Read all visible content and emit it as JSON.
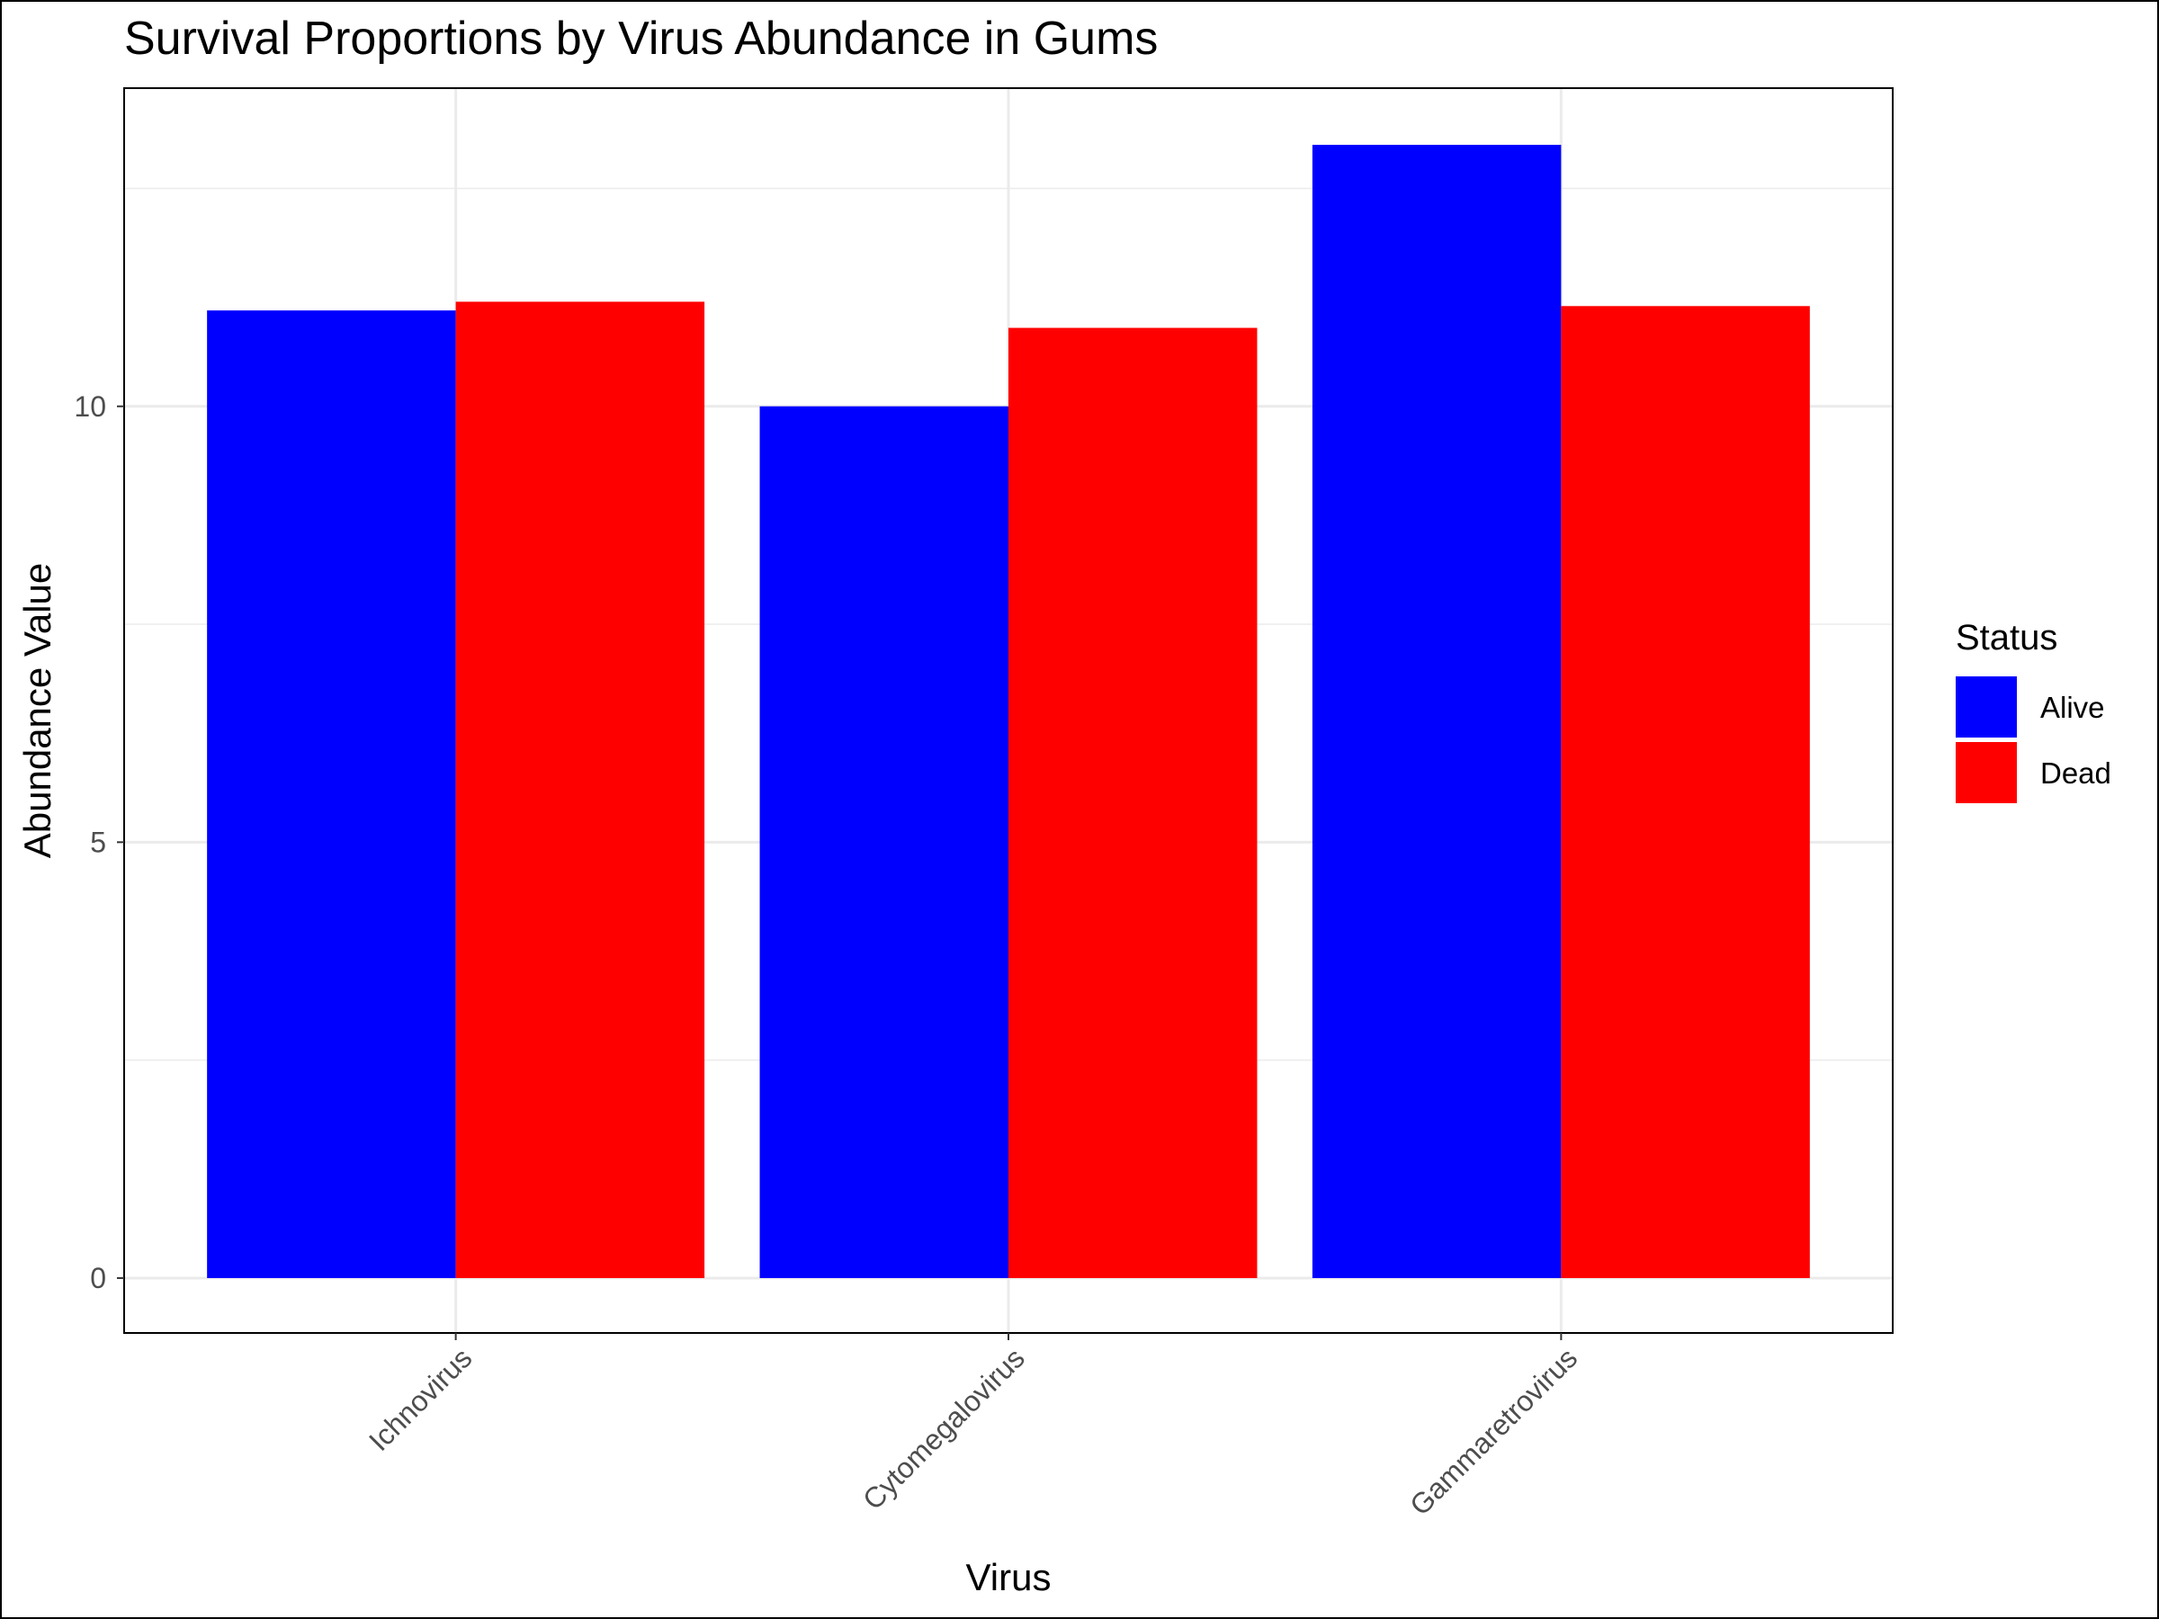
{
  "chart_data": {
    "type": "bar",
    "title": "Survival Proportions by Virus Abundance in Gums",
    "xlabel": "Virus",
    "ylabel": "Abundance Value",
    "categories": [
      "Ichnovirus",
      "Cytomegalovirus",
      "Gammaretrovirus"
    ],
    "series": [
      {
        "name": "Alive",
        "color": "#0000FF",
        "values": [
          11.1,
          10.0,
          13.0
        ]
      },
      {
        "name": "Dead",
        "color": "#FF0000",
        "values": [
          11.2,
          10.9,
          11.15
        ]
      }
    ],
    "ylim": [
      -0.63,
      13.65
    ],
    "yticks": [
      0,
      5,
      10
    ],
    "grid": true,
    "legend": {
      "title": "Status",
      "position": "right"
    }
  }
}
